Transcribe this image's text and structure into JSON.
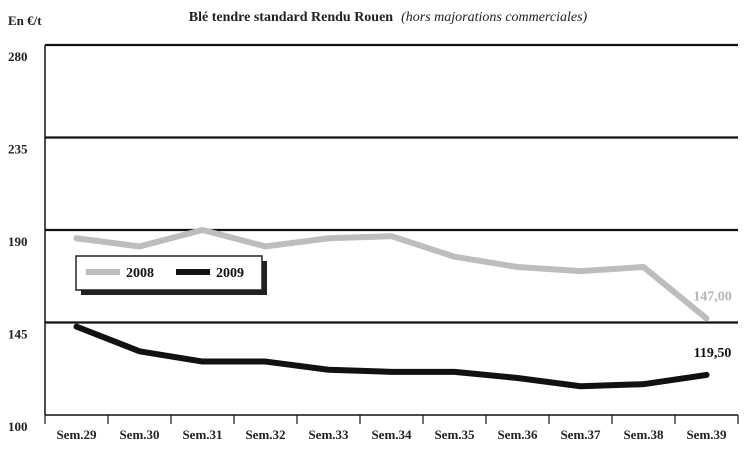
{
  "chart_data": {
    "type": "line",
    "title": "Blé tendre standard Rendu Rouen",
    "subtitle": "(hors majorations commerciales)",
    "ylabel": "En €/t",
    "xlabel": "",
    "categories": [
      "Sem.29",
      "Sem.30",
      "Sem.31",
      "Sem.32",
      "Sem.33",
      "Sem.34",
      "Sem.35",
      "Sem.36",
      "Sem.37",
      "Sem.38",
      "Sem.39"
    ],
    "ylim": [
      100,
      280
    ],
    "yticks": [
      "100",
      "145",
      "190",
      "235",
      "280"
    ],
    "grid": "horizontal",
    "legend_position": "left",
    "series": [
      {
        "name": "2008",
        "color": "#bdbdbd",
        "values": [
          186,
          182,
          190,
          182,
          186,
          187,
          177,
          172,
          170,
          172,
          147
        ],
        "end_label": "147,00"
      },
      {
        "name": "2009",
        "color": "#111111",
        "values": [
          143,
          131,
          126,
          126,
          122,
          121,
          121,
          118,
          114,
          115,
          119.5
        ],
        "end_label": "119,50"
      }
    ]
  }
}
